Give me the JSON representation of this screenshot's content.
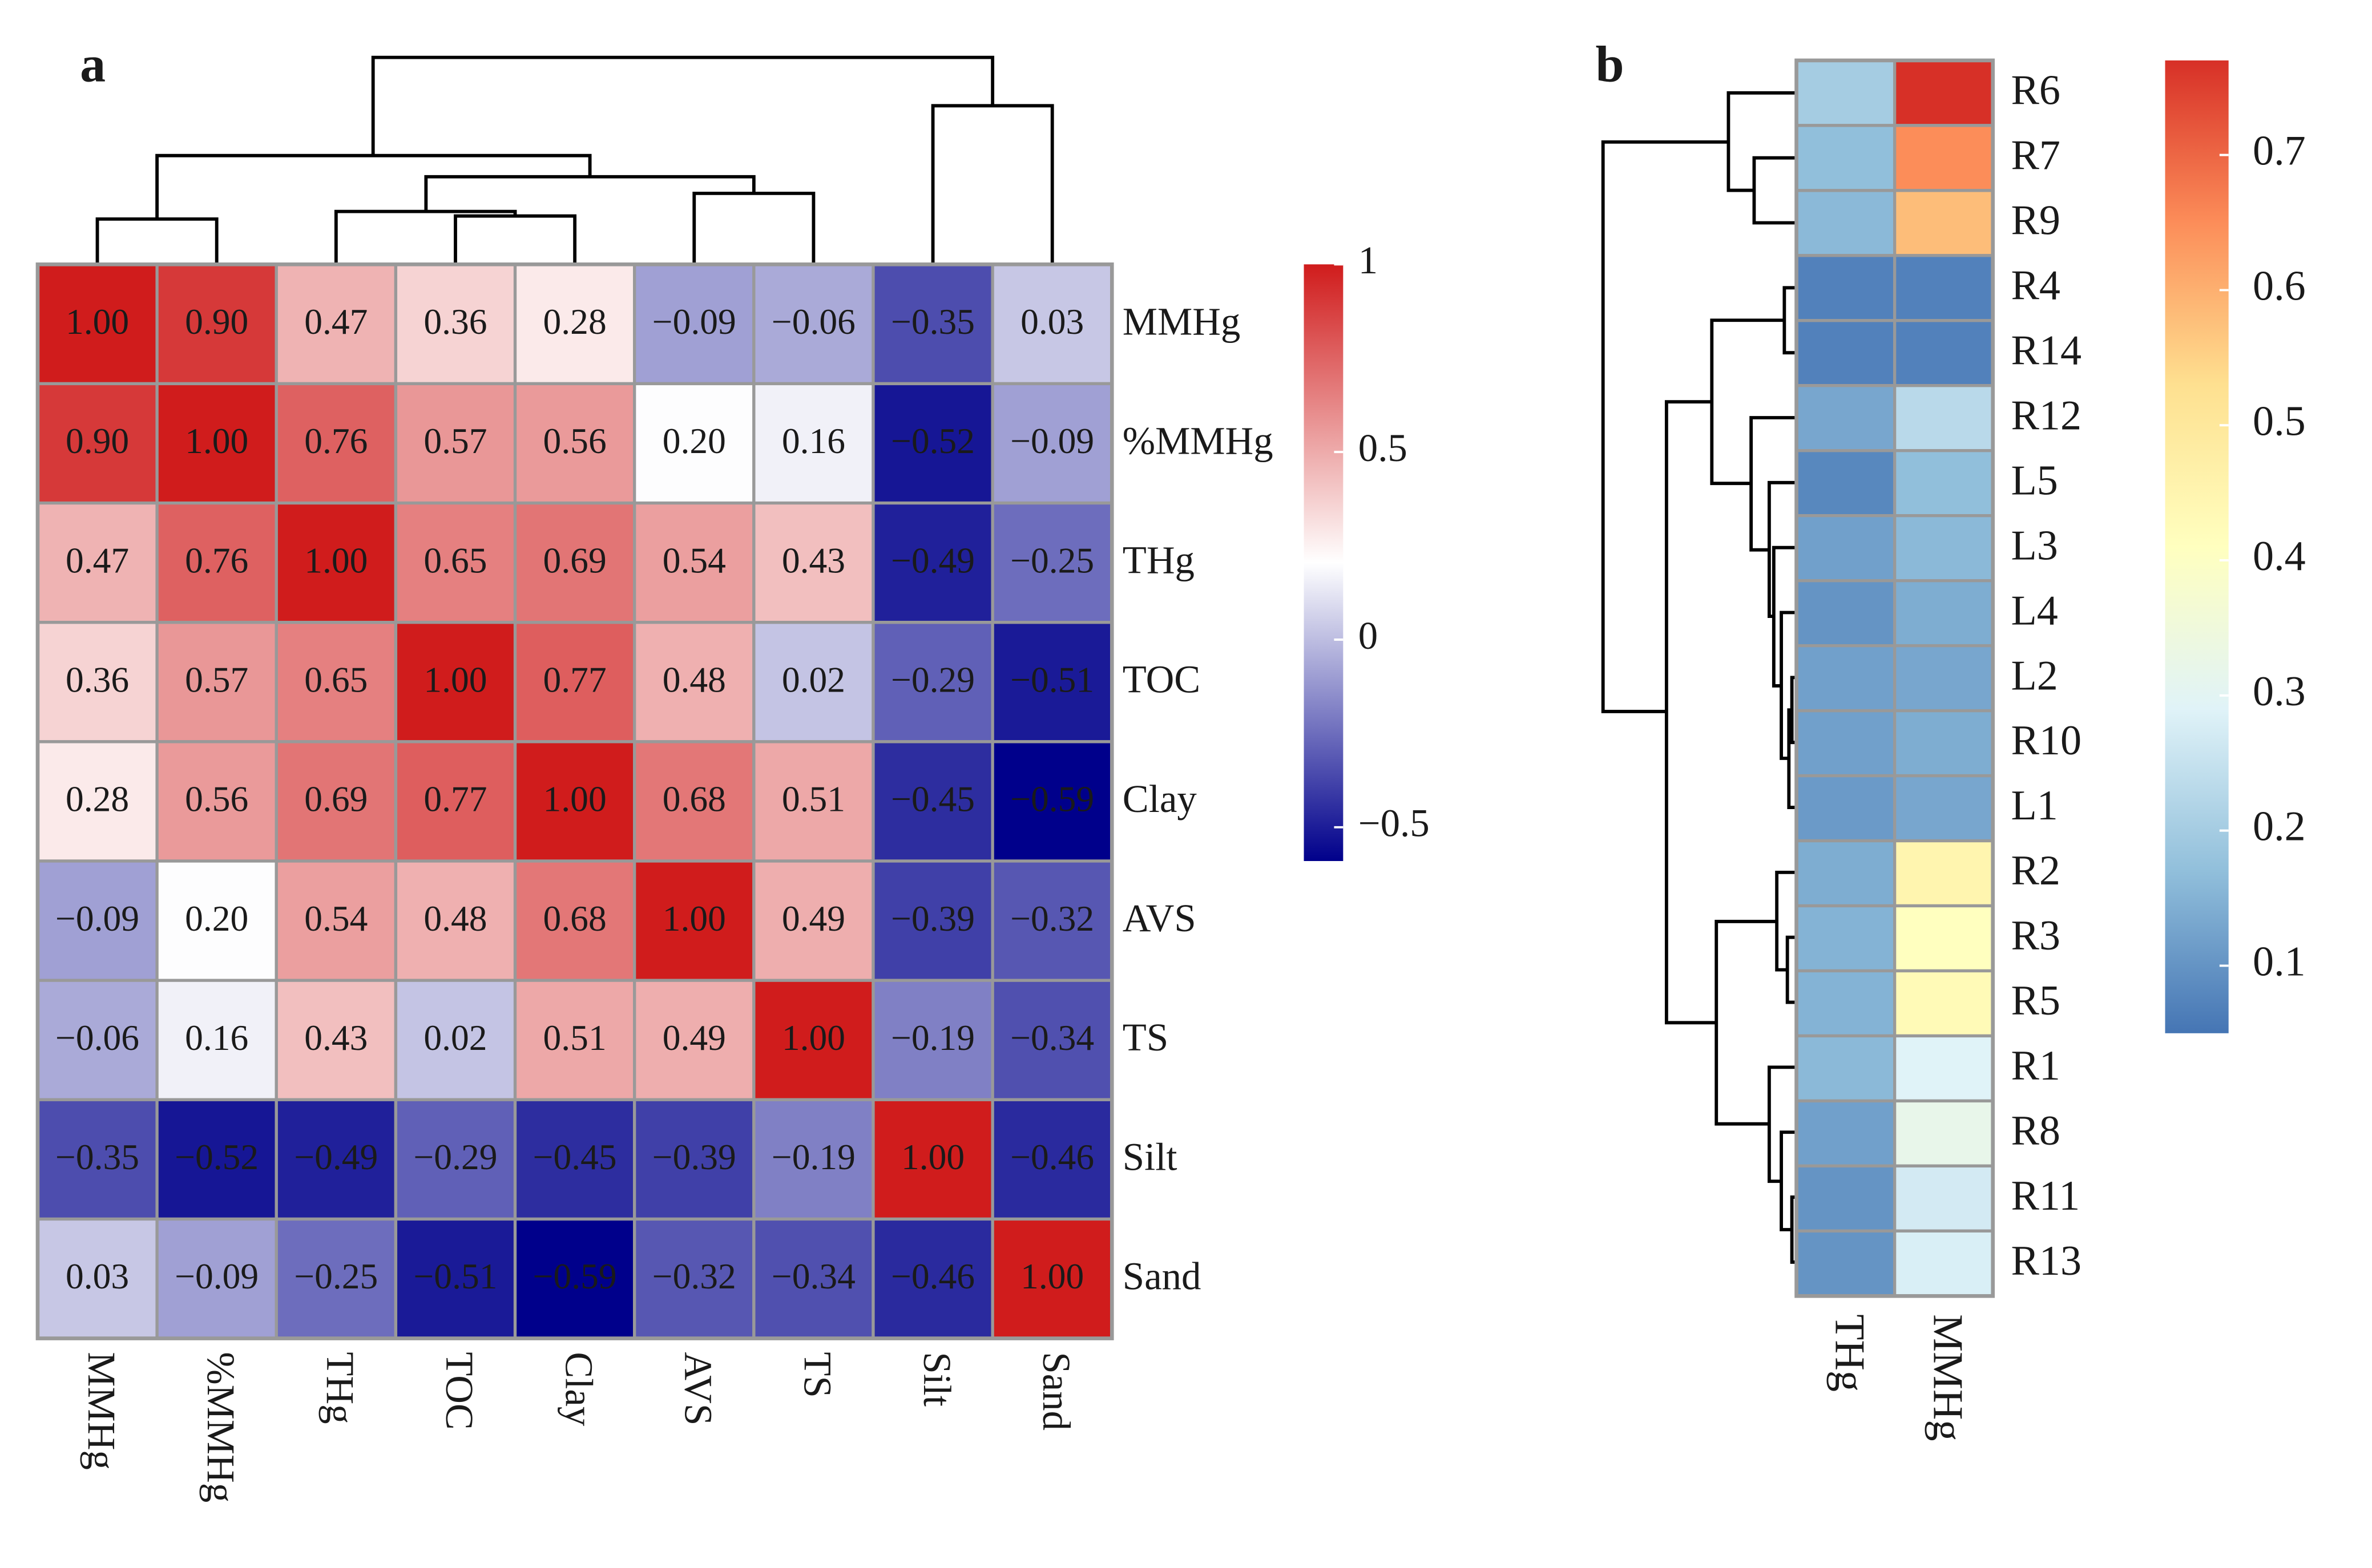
{
  "chart_data": [
    {
      "type": "heatmap",
      "panel_label": "a",
      "x_categories": [
        "MMHg",
        "%MMHg",
        "THg",
        "TOC",
        "Clay",
        "AVS",
        "TS",
        "Silt",
        "Sand"
      ],
      "y_categories": [
        "MMHg",
        "%MMHg",
        "THg",
        "TOC",
        "Clay",
        "AVS",
        "TS",
        "Silt",
        "Sand"
      ],
      "values": [
        [
          1.0,
          0.9,
          0.47,
          0.36,
          0.28,
          -0.09,
          -0.06,
          -0.35,
          0.03
        ],
        [
          0.9,
          1.0,
          0.76,
          0.57,
          0.56,
          0.2,
          0.16,
          -0.52,
          -0.09
        ],
        [
          0.47,
          0.76,
          1.0,
          0.65,
          0.69,
          0.54,
          0.43,
          -0.49,
          -0.25
        ],
        [
          0.36,
          0.57,
          0.65,
          1.0,
          0.77,
          0.48,
          0.02,
          -0.29,
          -0.51
        ],
        [
          0.28,
          0.56,
          0.69,
          0.77,
          1.0,
          0.68,
          0.51,
          -0.45,
          -0.59
        ],
        [
          -0.09,
          0.2,
          0.54,
          0.48,
          0.68,
          1.0,
          0.49,
          -0.39,
          -0.32
        ],
        [
          -0.06,
          0.16,
          0.43,
          0.02,
          0.51,
          0.49,
          1.0,
          -0.19,
          -0.34
        ],
        [
          -0.35,
          -0.52,
          -0.49,
          -0.29,
          -0.45,
          -0.39,
          -0.19,
          1.0,
          -0.46
        ],
        [
          0.03,
          -0.09,
          -0.25,
          -0.51,
          -0.59,
          -0.32,
          -0.34,
          -0.46,
          1.0
        ]
      ],
      "value_labels": [
        [
          "1.00",
          "0.90",
          "0.47",
          "0.36",
          "0.28",
          "−0.09",
          "−0.06",
          "−0.35",
          "0.03"
        ],
        [
          "0.90",
          "1.00",
          "0.76",
          "0.57",
          "0.56",
          "0.20",
          "0.16",
          "−0.52",
          "−0.09"
        ],
        [
          "0.47",
          "0.76",
          "1.00",
          "0.65",
          "0.69",
          "0.54",
          "0.43",
          "−0.49",
          "−0.25"
        ],
        [
          "0.36",
          "0.57",
          "0.65",
          "1.00",
          "0.77",
          "0.48",
          "0.02",
          "−0.29",
          "−0.51"
        ],
        [
          "0.28",
          "0.56",
          "0.69",
          "0.77",
          "1.00",
          "0.68",
          "0.51",
          "−0.45",
          "−0.59"
        ],
        [
          "−0.09",
          "0.20",
          "0.54",
          "0.48",
          "0.68",
          "1.00",
          "0.49",
          "−0.39",
          "−0.32"
        ],
        [
          "−0.06",
          "0.16",
          "0.43",
          "0.02",
          "0.51",
          "0.49",
          "1.00",
          "−0.19",
          "−0.34"
        ],
        [
          "−0.35",
          "−0.52",
          "−0.49",
          "−0.29",
          "−0.45",
          "−0.39",
          "−0.19",
          "1.00",
          "−0.46"
        ],
        [
          "0.03",
          "−0.09",
          "−0.25",
          "−0.51",
          "−0.59",
          "−0.32",
          "−0.34",
          "−0.46",
          "1.00"
        ]
      ],
      "clim": [
        -0.59,
        1
      ],
      "cticks": [
        1,
        0.5,
        0,
        {
          "value": -0.5,
          "label": "−0.5"
        }
      ],
      "colors": [
        "#00008b",
        "#ffffff",
        "#d01c1c"
      ]
    },
    {
      "type": "heatmap",
      "panel_label": "b",
      "x_categories": [
        "THg",
        "MMHg"
      ],
      "y_categories": [
        "R6",
        "R7",
        "R9",
        "R4",
        "R14",
        "R12",
        "L5",
        "L3",
        "L4",
        "L2",
        "R10",
        "L1",
        "R2",
        "R3",
        "R5",
        "R1",
        "R8",
        "R11",
        "R13"
      ],
      "values": [
        [
          0.2,
          0.77
        ],
        [
          0.17,
          0.65
        ],
        [
          0.16,
          0.58
        ],
        [
          0.07,
          0.07
        ],
        [
          0.07,
          0.07
        ],
        [
          0.13,
          0.23
        ],
        [
          0.08,
          0.17
        ],
        [
          0.12,
          0.16
        ],
        [
          0.1,
          0.14
        ],
        [
          0.12,
          0.13
        ],
        [
          0.12,
          0.14
        ],
        [
          0.11,
          0.13
        ],
        [
          0.14,
          0.45
        ],
        [
          0.15,
          0.41
        ],
        [
          0.15,
          0.43
        ],
        [
          0.16,
          0.29
        ],
        [
          0.12,
          0.32
        ],
        [
          0.1,
          0.27
        ],
        [
          0.1,
          0.28
        ]
      ],
      "clim": [
        0.05,
        0.77
      ],
      "cticks": [
        0.7,
        0.6,
        0.5,
        0.4,
        0.3,
        0.2,
        0.1
      ],
      "colors": [
        "#4575b4",
        "#91bfdb",
        "#e0f3f8",
        "#ffffbf",
        "#fee090",
        "#fc8d59",
        "#d73027"
      ]
    }
  ]
}
